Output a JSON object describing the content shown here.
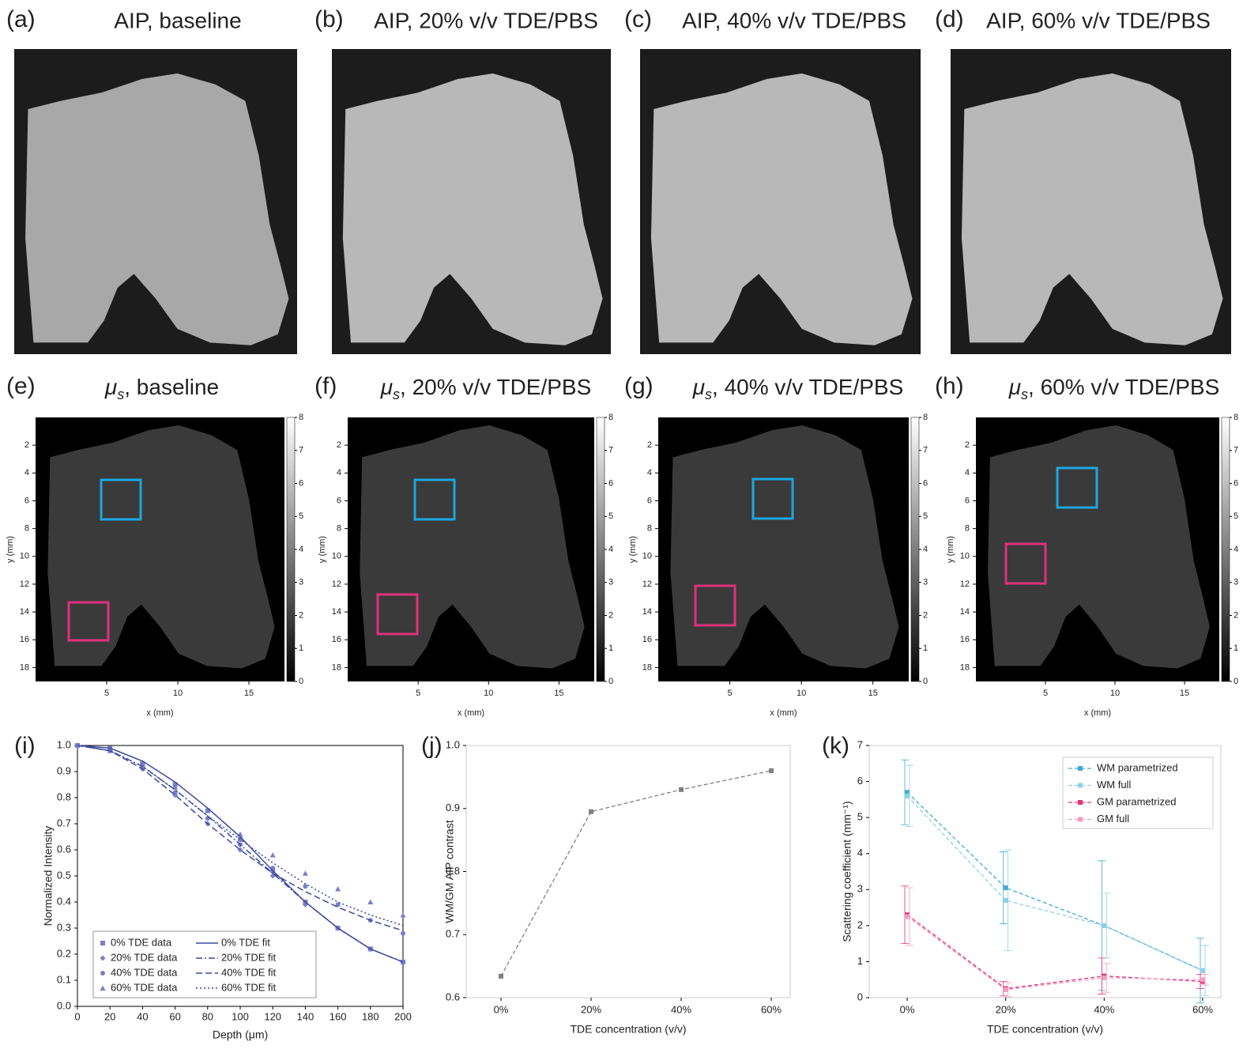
{
  "panels": [
    {
      "label": "(a)",
      "title": "AIP, baseline"
    },
    {
      "label": "(b)",
      "title": "AIP, 20% v/v TDE/PBS"
    },
    {
      "label": "(c)",
      "title": "AIP, 40% v/v TDE/PBS"
    },
    {
      "label": "(d)",
      "title": "AIP, 60% v/v TDE/PBS"
    }
  ],
  "map_panels": [
    {
      "label": "(e)",
      "symbol": "μ",
      "subscript": "s",
      "title": ", baseline"
    },
    {
      "label": "(f)",
      "symbol": "μ",
      "subscript": "s",
      "title": ", 20% v/v TDE/PBS"
    },
    {
      "label": "(g)",
      "symbol": "μ",
      "subscript": "s",
      "title": ", 40% v/v TDE/PBS"
    },
    {
      "label": "(h)",
      "symbol": "μ",
      "subscript": "s",
      "title": ", 60% v/v TDE/PBS"
    }
  ],
  "map_axes": {
    "xlabel": "x (mm)",
    "ylabel": "y (mm)",
    "xlim": [
      0,
      17.5
    ],
    "ylim": [
      0,
      19
    ],
    "xticks": [
      5,
      10,
      15
    ],
    "yticks": [
      2,
      4,
      6,
      8,
      10,
      12,
      14,
      16,
      18
    ],
    "clim": [
      0,
      8
    ],
    "colorbar_ticks": [
      0,
      1,
      2,
      3,
      4,
      5,
      6,
      7,
      8
    ]
  },
  "chart_data": [
    {
      "type": "line",
      "panel_label": "(i)",
      "xlabel": "Depth (μm)",
      "ylabel": "Normalized Intensity",
      "x": [
        0,
        20,
        40,
        60,
        80,
        100,
        120,
        140,
        160,
        180,
        200
      ],
      "xlim": [
        0,
        200
      ],
      "xticks": [
        0,
        20,
        40,
        60,
        80,
        100,
        120,
        140,
        160,
        180,
        200
      ],
      "ylim": [
        0,
        1
      ],
      "yticks": [
        {
          "value": 0,
          "label": "0.0"
        },
        0.1,
        0.2,
        0.3,
        0.4,
        0.5,
        0.6,
        0.7,
        0.8,
        0.9,
        {
          "value": 1,
          "label": "1.0"
        }
      ],
      "series": [
        {
          "name": "0%   TDE data",
          "color": "#7b7fc4",
          "marker": "square",
          "values": [
            1.0,
            0.99,
            0.93,
            0.85,
            0.75,
            0.64,
            0.52,
            0.4,
            0.3,
            0.22,
            0.17
          ]
        },
        {
          "name": "20%  TDE data",
          "color": "#7b7fc4",
          "marker": "diamond",
          "values": [
            1.0,
            0.98,
            0.91,
            0.81,
            0.7,
            0.6,
            0.5,
            0.39,
            0.3,
            0.22,
            0.17
          ]
        },
        {
          "name": "40%  TDE data",
          "color": "#7b7fc4",
          "marker": "circle",
          "values": [
            1.0,
            0.98,
            0.92,
            0.82,
            0.72,
            0.62,
            0.53,
            0.46,
            0.39,
            0.33,
            0.28
          ]
        },
        {
          "name": "60%  TDE data",
          "color": "#7b7fc4",
          "marker": "triangle",
          "values": [
            1.0,
            0.98,
            0.93,
            0.84,
            0.75,
            0.66,
            0.58,
            0.51,
            0.45,
            0.4,
            0.35
          ]
        },
        {
          "name": "0%   TDE fit",
          "color": "#3b4aa0",
          "dash": "solid",
          "values": [
            1.0,
            0.99,
            0.94,
            0.86,
            0.76,
            0.65,
            0.52,
            0.4,
            0.3,
            0.22,
            0.17
          ]
        },
        {
          "name": "20%  TDE fit",
          "color": "#3b4aa0",
          "dash": "dashdot",
          "values": [
            1.0,
            0.98,
            0.92,
            0.83,
            0.73,
            0.62,
            0.51,
            0.4,
            0.3,
            0.22,
            0.17
          ]
        },
        {
          "name": "40%  TDE fit",
          "color": "#3b4aa0",
          "dash": "dashed",
          "values": [
            1.0,
            0.98,
            0.91,
            0.81,
            0.7,
            0.6,
            0.51,
            0.44,
            0.38,
            0.33,
            0.29
          ]
        },
        {
          "name": "60%  TDE fit",
          "color": "#3b4aa0",
          "dash": "dotted",
          "values": [
            1.0,
            0.98,
            0.92,
            0.83,
            0.73,
            0.64,
            0.55,
            0.47,
            0.4,
            0.35,
            0.31
          ]
        }
      ]
    },
    {
      "type": "point-line",
      "panel_label": "(j)",
      "xlabel": "TDE concentration (v/v)",
      "ylabel": "WM/GM AIP contrast",
      "categories": [
        "0%",
        "20%",
        "40%",
        "60%"
      ],
      "ylim": [
        0.6,
        1.0
      ],
      "yticks": [
        0.6,
        0.7,
        0.8,
        0.9,
        {
          "value": 1,
          "label": "1.0"
        }
      ],
      "series": [
        {
          "color": "#808080",
          "values": [
            0.634,
            0.895,
            0.93,
            0.96
          ]
        }
      ]
    },
    {
      "type": "errorbar",
      "panel_label": "(k)",
      "xlabel": "TDE concentration (v/v)",
      "ylabel": "Scattering coefficient (mm⁻¹)",
      "categories": [
        "0%",
        "20%",
        "40%",
        "60%"
      ],
      "ylim": [
        0,
        7
      ],
      "yticks": [
        0,
        1,
        2,
        3,
        4,
        5,
        6,
        7
      ],
      "legend": "upper right",
      "series": [
        {
          "name": "WM parametrized",
          "color": "#3fa9d6",
          "values": [
            5.7,
            3.05,
            2.0,
            0.75
          ],
          "errors": [
            0.9,
            1.0,
            1.8,
            0.9
          ]
        },
        {
          "name": "WM full",
          "color": "#8fd0ea",
          "values": [
            5.6,
            2.7,
            2.0,
            0.75
          ],
          "errors": [
            0.85,
            1.4,
            0.9,
            0.7
          ]
        },
        {
          "name": "GM parametrized",
          "color": "#e0317a",
          "values": [
            2.3,
            0.25,
            0.6,
            0.45
          ],
          "errors": [
            0.8,
            0.2,
            0.5,
            0.2
          ]
        },
        {
          "name": "GM full",
          "color": "#f0a0c0",
          "values": [
            2.25,
            0.22,
            0.55,
            0.5
          ],
          "errors": [
            0.8,
            0.2,
            0.4,
            0.15
          ]
        }
      ]
    }
  ]
}
